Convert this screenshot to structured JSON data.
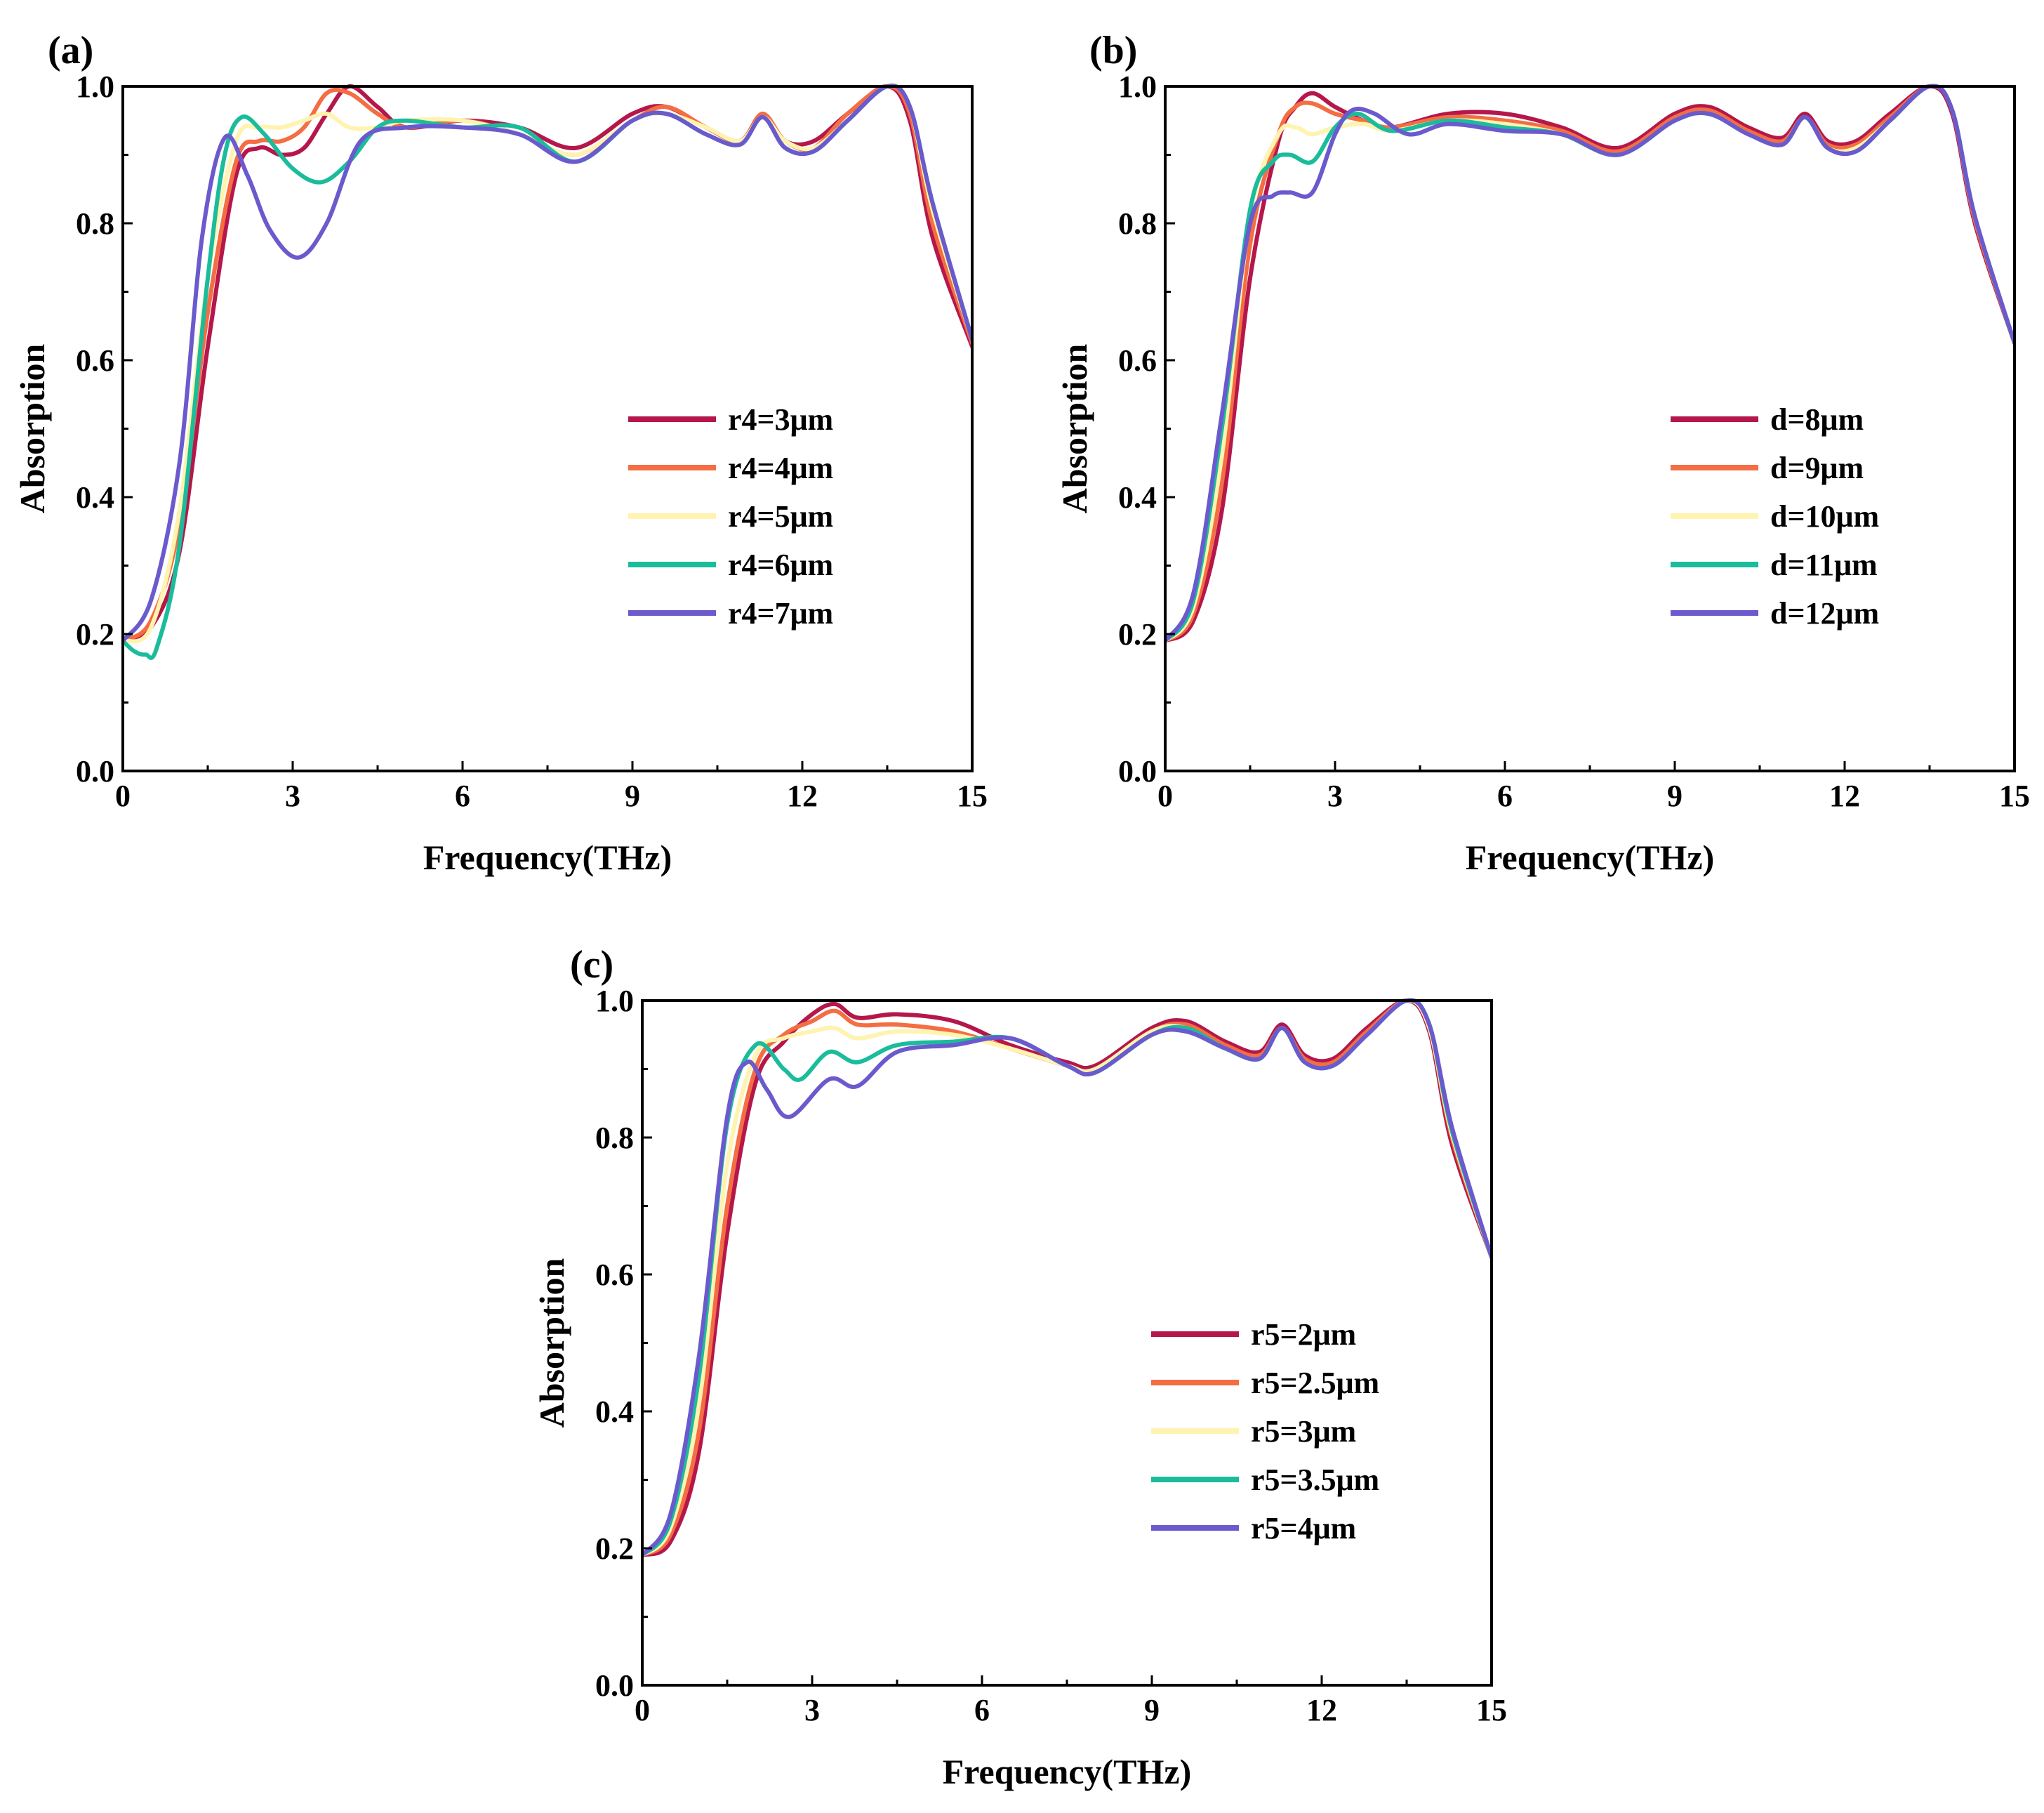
{
  "chart_data": [
    {
      "type": "line",
      "panel_label": "(a)",
      "xlabel": "Frequency(THz)",
      "ylabel": "Absorption",
      "xlim": [
        0,
        15
      ],
      "ylim": [
        0,
        1
      ],
      "xticks": [
        "0",
        "3",
        "6",
        "9",
        "12",
        "15"
      ],
      "yticks": [
        "0.0",
        "0.2",
        "0.4",
        "0.6",
        "0.8",
        "1.0"
      ],
      "legend_position": "center-right",
      "series": [
        {
          "name": "r4=3μm",
          "color": "#b5174a",
          "x": [
            0,
            0.5,
            1,
            1.5,
            2,
            2.4,
            2.8,
            3.2,
            3.6,
            4,
            4.5,
            5,
            6,
            7,
            8,
            9,
            9.6,
            10.3,
            10.9,
            11.3,
            11.7,
            12.2,
            12.8,
            13.5,
            13.9,
            14.3,
            15
          ],
          "y": [
            0.19,
            0.21,
            0.32,
            0.62,
            0.87,
            0.91,
            0.9,
            0.91,
            0.96,
            1.0,
            0.97,
            0.94,
            0.95,
            0.94,
            0.91,
            0.96,
            0.97,
            0.94,
            0.92,
            0.96,
            0.92,
            0.92,
            0.96,
            1.0,
            0.95,
            0.78,
            0.62
          ]
        },
        {
          "name": "r4=4μm",
          "color": "#f46d43",
          "x": [
            0,
            0.5,
            1,
            1.5,
            2,
            2.4,
            2.8,
            3.2,
            3.6,
            4,
            4.5,
            5,
            6,
            7,
            8,
            9,
            9.6,
            10.3,
            10.9,
            11.3,
            11.7,
            12.2,
            12.8,
            13.5,
            13.9,
            14.3,
            15
          ],
          "y": [
            0.19,
            0.22,
            0.36,
            0.67,
            0.89,
            0.92,
            0.92,
            0.94,
            0.99,
            0.99,
            0.96,
            0.94,
            0.95,
            0.93,
            0.9,
            0.95,
            0.97,
            0.94,
            0.92,
            0.96,
            0.92,
            0.91,
            0.96,
            1.0,
            0.96,
            0.8,
            0.625
          ]
        },
        {
          "name": "r4=5μm",
          "color": "#fff3b0",
          "x": [
            0,
            0.5,
            1,
            1.5,
            2,
            2.4,
            2.8,
            3.2,
            3.6,
            4,
            4.5,
            5,
            6,
            7,
            8,
            9,
            9.6,
            10.3,
            10.9,
            11.3,
            11.7,
            12.2,
            12.8,
            13.5,
            13.9,
            14.3,
            15
          ],
          "y": [
            0.19,
            0.21,
            0.38,
            0.72,
            0.92,
            0.94,
            0.94,
            0.95,
            0.96,
            0.94,
            0.94,
            0.95,
            0.95,
            0.93,
            0.9,
            0.95,
            0.96,
            0.94,
            0.92,
            0.955,
            0.92,
            0.91,
            0.95,
            1.0,
            0.97,
            0.82,
            0.63
          ]
        },
        {
          "name": "r4=6μm",
          "color": "#1abc9c",
          "x": [
            0,
            0.2,
            0.4,
            0.6,
            1,
            1.5,
            1.8,
            2.1,
            2.5,
            3,
            3.5,
            4,
            4.5,
            5,
            6,
            7,
            8,
            9,
            9.6,
            10.3,
            10.9,
            11.3,
            11.7,
            12.2,
            12.8,
            13.5,
            13.9,
            14.3,
            15
          ],
          "y": [
            0.19,
            0.175,
            0.17,
            0.18,
            0.33,
            0.72,
            0.9,
            0.955,
            0.93,
            0.88,
            0.86,
            0.89,
            0.94,
            0.95,
            0.94,
            0.94,
            0.89,
            0.95,
            0.96,
            0.93,
            0.915,
            0.955,
            0.91,
            0.905,
            0.95,
            1.0,
            0.97,
            0.83,
            0.63
          ]
        },
        {
          "name": "r4=7μm",
          "color": "#6a5acd",
          "x": [
            0,
            0.5,
            1,
            1.4,
            1.8,
            2.2,
            2.6,
            3.1,
            3.6,
            4.2,
            5,
            6,
            7,
            8,
            9,
            9.6,
            10.3,
            10.9,
            11.3,
            11.7,
            12.2,
            12.8,
            13.5,
            13.9,
            14.3,
            15
          ],
          "y": [
            0.19,
            0.25,
            0.45,
            0.78,
            0.925,
            0.87,
            0.79,
            0.75,
            0.8,
            0.92,
            0.94,
            0.94,
            0.93,
            0.89,
            0.95,
            0.96,
            0.93,
            0.915,
            0.955,
            0.91,
            0.905,
            0.95,
            1.0,
            0.97,
            0.83,
            0.63
          ]
        }
      ]
    },
    {
      "type": "line",
      "panel_label": "(b)",
      "xlabel": "Frequency(THz)",
      "ylabel": "Absorption",
      "xlim": [
        0,
        15
      ],
      "ylim": [
        0,
        1
      ],
      "xticks": [
        "0",
        "3",
        "6",
        "9",
        "12",
        "15"
      ],
      "yticks": [
        "0.0",
        "0.2",
        "0.4",
        "0.6",
        "0.8",
        "1.0"
      ],
      "legend_position": "center-right",
      "series": [
        {
          "name": "d=8μm",
          "color": "#b5174a",
          "x": [
            0,
            0.5,
            1,
            1.5,
            2,
            2.3,
            2.6,
            3,
            3.5,
            4,
            5,
            6,
            7,
            8,
            9,
            9.6,
            10.3,
            10.9,
            11.3,
            11.7,
            12.2,
            12.8,
            13.5,
            13.9,
            14.3,
            15
          ],
          "y": [
            0.19,
            0.22,
            0.38,
            0.72,
            0.92,
            0.97,
            0.99,
            0.97,
            0.95,
            0.94,
            0.96,
            0.96,
            0.94,
            0.91,
            0.96,
            0.97,
            0.94,
            0.925,
            0.96,
            0.92,
            0.92,
            0.96,
            1.0,
            0.96,
            0.8,
            0.625
          ]
        },
        {
          "name": "d=9μm",
          "color": "#f46d43",
          "x": [
            0,
            0.5,
            1,
            1.5,
            2,
            2.3,
            2.6,
            3,
            3.5,
            4,
            5,
            6,
            7,
            8,
            9,
            9.6,
            10.3,
            10.9,
            11.3,
            11.7,
            12.2,
            12.8,
            13.5,
            13.9,
            14.3,
            15
          ],
          "y": [
            0.19,
            0.23,
            0.42,
            0.77,
            0.93,
            0.97,
            0.975,
            0.96,
            0.95,
            0.94,
            0.955,
            0.95,
            0.935,
            0.905,
            0.955,
            0.965,
            0.935,
            0.92,
            0.955,
            0.915,
            0.915,
            0.955,
            1.0,
            0.965,
            0.805,
            0.625
          ]
        },
        {
          "name": "d=10μm",
          "color": "#fff3b0",
          "x": [
            0,
            0.5,
            1,
            1.5,
            2,
            2.3,
            2.6,
            3,
            3.5,
            4,
            5,
            6,
            7,
            8,
            9,
            9.6,
            10.3,
            10.9,
            11.3,
            11.7,
            12.2,
            12.8,
            13.5,
            13.9,
            14.3,
            15
          ],
          "y": [
            0.19,
            0.24,
            0.46,
            0.81,
            0.93,
            0.94,
            0.93,
            0.94,
            0.945,
            0.935,
            0.95,
            0.945,
            0.93,
            0.9,
            0.95,
            0.96,
            0.93,
            0.915,
            0.955,
            0.91,
            0.91,
            0.95,
            1.0,
            0.965,
            0.81,
            0.625
          ]
        },
        {
          "name": "d=11μm",
          "color": "#1abc9c",
          "x": [
            0,
            0.5,
            1,
            1.5,
            1.9,
            2.2,
            2.6,
            3,
            3.4,
            4,
            5,
            6,
            7,
            8,
            9,
            9.6,
            10.3,
            10.9,
            11.3,
            11.7,
            12.2,
            12.8,
            13.5,
            13.9,
            14.3,
            15
          ],
          "y": [
            0.19,
            0.25,
            0.5,
            0.82,
            0.89,
            0.9,
            0.89,
            0.94,
            0.96,
            0.935,
            0.95,
            0.94,
            0.93,
            0.9,
            0.95,
            0.96,
            0.93,
            0.915,
            0.955,
            0.91,
            0.905,
            0.95,
            1.0,
            0.965,
            0.81,
            0.625
          ]
        },
        {
          "name": "d=12μm",
          "color": "#6a5acd",
          "x": [
            0,
            0.5,
            1,
            1.5,
            1.9,
            2.2,
            2.6,
            3,
            3.3,
            3.7,
            4.3,
            5,
            6,
            7,
            8,
            9,
            9.6,
            10.3,
            10.9,
            11.3,
            11.7,
            12.2,
            12.8,
            13.5,
            13.9,
            14.3,
            15
          ],
          "y": [
            0.19,
            0.26,
            0.52,
            0.8,
            0.84,
            0.845,
            0.845,
            0.93,
            0.965,
            0.96,
            0.93,
            0.945,
            0.935,
            0.93,
            0.9,
            0.95,
            0.96,
            0.93,
            0.915,
            0.955,
            0.91,
            0.905,
            0.95,
            1.0,
            0.965,
            0.81,
            0.625
          ]
        }
      ]
    },
    {
      "type": "line",
      "panel_label": "(c)",
      "xlabel": "Frequency(THz)",
      "ylabel": "Absorption",
      "xlim": [
        0,
        15
      ],
      "ylim": [
        0,
        1
      ],
      "xticks": [
        "0",
        "3",
        "6",
        "9",
        "12",
        "15"
      ],
      "yticks": [
        "0.0",
        "0.2",
        "0.4",
        "0.6",
        "0.8",
        "1.0"
      ],
      "legend_position": "center-right",
      "series": [
        {
          "name": "r5=2μm",
          "color": "#b5174a",
          "x": [
            0,
            0.5,
            1,
            1.5,
            2,
            2.5,
            3,
            3.4,
            3.8,
            4.5,
            5.5,
            6.5,
            7.5,
            8,
            9,
            9.6,
            10.3,
            10.9,
            11.3,
            11.7,
            12.2,
            12.8,
            13.5,
            13.9,
            14.3,
            15
          ],
          "y": [
            0.19,
            0.21,
            0.34,
            0.66,
            0.88,
            0.94,
            0.98,
            0.995,
            0.975,
            0.98,
            0.97,
            0.935,
            0.91,
            0.905,
            0.96,
            0.97,
            0.94,
            0.925,
            0.965,
            0.92,
            0.915,
            0.96,
            1.0,
            0.955,
            0.79,
            0.625
          ]
        },
        {
          "name": "r5=2.5μm",
          "color": "#f46d43",
          "x": [
            0,
            0.5,
            1,
            1.5,
            2,
            2.5,
            3,
            3.4,
            3.8,
            4.5,
            5.5,
            6.5,
            7.5,
            8,
            9,
            9.6,
            10.3,
            10.9,
            11.3,
            11.7,
            12.2,
            12.8,
            13.5,
            13.9,
            14.3,
            15
          ],
          "y": [
            0.19,
            0.22,
            0.37,
            0.7,
            0.9,
            0.95,
            0.97,
            0.985,
            0.965,
            0.965,
            0.955,
            0.93,
            0.905,
            0.9,
            0.955,
            0.965,
            0.935,
            0.92,
            0.96,
            0.915,
            0.91,
            0.955,
            1.0,
            0.96,
            0.8,
            0.625
          ]
        },
        {
          "name": "r5=3μm",
          "color": "#fff3b0",
          "x": [
            0,
            0.5,
            1,
            1.5,
            2,
            2.5,
            3,
            3.4,
            3.8,
            4.5,
            5.5,
            6.5,
            7.5,
            8,
            9,
            9.6,
            10.3,
            10.9,
            11.3,
            11.7,
            12.2,
            12.8,
            13.5,
            13.9,
            14.3,
            15
          ],
          "y": [
            0.19,
            0.23,
            0.41,
            0.76,
            0.92,
            0.945,
            0.955,
            0.96,
            0.945,
            0.955,
            0.95,
            0.93,
            0.905,
            0.9,
            0.955,
            0.96,
            0.93,
            0.915,
            0.96,
            0.91,
            0.905,
            0.95,
            1.0,
            0.96,
            0.805,
            0.625
          ]
        },
        {
          "name": "r5=3.5μm",
          "color": "#1abc9c",
          "x": [
            0,
            0.5,
            1,
            1.5,
            2,
            2.5,
            2.8,
            3.3,
            3.8,
            4.5,
            5.5,
            6.5,
            7.5,
            8,
            9,
            9.6,
            10.3,
            10.9,
            11.3,
            11.7,
            12.2,
            12.8,
            13.5,
            13.9,
            14.3,
            15
          ],
          "y": [
            0.19,
            0.24,
            0.45,
            0.82,
            0.935,
            0.9,
            0.885,
            0.925,
            0.91,
            0.935,
            0.94,
            0.945,
            0.905,
            0.895,
            0.95,
            0.96,
            0.93,
            0.915,
            0.96,
            0.91,
            0.905,
            0.95,
            1.0,
            0.965,
            0.81,
            0.625
          ]
        },
        {
          "name": "r5=4μm",
          "color": "#6a5acd",
          "x": [
            0,
            0.5,
            1,
            1.5,
            1.85,
            2.2,
            2.6,
            3.3,
            3.8,
            4.5,
            5.5,
            6.5,
            7.5,
            8,
            9,
            9.6,
            10.3,
            10.9,
            11.3,
            11.7,
            12.2,
            12.8,
            13.5,
            13.9,
            14.3,
            15
          ],
          "y": [
            0.19,
            0.25,
            0.48,
            0.83,
            0.91,
            0.87,
            0.83,
            0.885,
            0.875,
            0.925,
            0.935,
            0.945,
            0.905,
            0.895,
            0.95,
            0.955,
            0.93,
            0.915,
            0.96,
            0.91,
            0.905,
            0.95,
            1.0,
            0.965,
            0.815,
            0.625
          ]
        }
      ]
    }
  ]
}
